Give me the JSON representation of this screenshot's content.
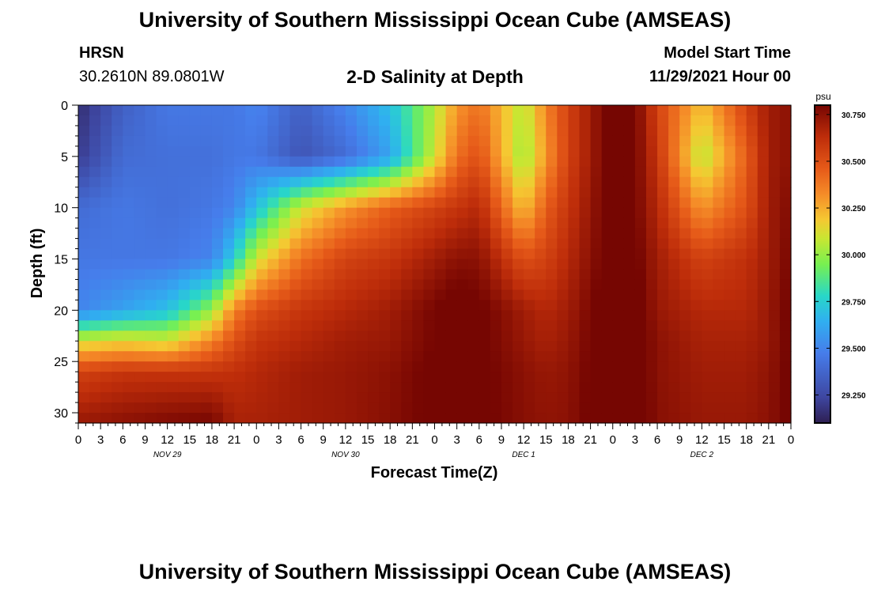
{
  "page": {
    "title": "University of Southern Mississippi Ocean Cube (AMSEAS)",
    "title_repeat": "University of Southern Mississippi Ocean Cube (AMSEAS)",
    "station": "HRSN",
    "coords": "30.2610N  89.0801W",
    "subtitle": "2-D Salinity at Depth",
    "model_start_label": "Model Start Time",
    "model_start_value": "11/29/2021 Hour 00"
  },
  "chart_data": {
    "type": "heatmap",
    "title": "2-D Salinity at Depth",
    "xlabel": "Forecast Time(Z)",
    "ylabel": "Depth (ft)",
    "x_tick_labels": [
      "0",
      "3",
      "6",
      "9",
      "12",
      "15",
      "18",
      "21",
      "0",
      "3",
      "6",
      "9",
      "12",
      "15",
      "18",
      "21",
      "0",
      "3",
      "6",
      "9",
      "12",
      "15",
      "18",
      "21",
      "0",
      "3",
      "6",
      "9",
      "12",
      "15",
      "18",
      "21",
      "0"
    ],
    "x_range_hours": [
      0,
      96
    ],
    "day_labels": [
      {
        "label": "NOV 29",
        "hour": 12
      },
      {
        "label": "NOV 30",
        "hour": 36
      },
      {
        "label": "DEC 1",
        "hour": 60
      },
      {
        "label": "DEC 2",
        "hour": 84
      }
    ],
    "y_ticks": [
      0,
      5,
      10,
      15,
      20,
      25,
      30
    ],
    "y_tick_labels": [
      "0",
      "5",
      "10",
      "15",
      "20",
      "25",
      "30"
    ],
    "ylim": [
      0,
      31
    ],
    "colorbar": {
      "unit": "psu",
      "range": [
        29.1,
        30.8
      ],
      "tick_values": [
        29.25,
        29.5,
        29.75,
        30.0,
        30.25,
        30.5,
        30.75
      ],
      "tick_labels": [
        "29.250",
        "29.500",
        "29.750",
        "30.000",
        "30.250",
        "30.500",
        "30.750"
      ]
    },
    "field": {
      "description": "salinity (psu) vs forecast hour and depth; estimated",
      "hours": [
        0,
        6,
        12,
        18,
        21,
        24,
        30,
        36,
        42,
        48,
        51,
        54,
        60,
        63,
        66,
        72,
        75,
        78,
        84,
        90,
        93,
        96
      ],
      "depths": [
        0,
        5,
        10,
        15,
        20,
        23,
        26,
        31
      ],
      "values": [
        [
          29.15,
          29.35,
          29.45,
          29.45,
          29.45,
          29.5,
          29.35,
          29.5,
          29.7,
          30.05,
          30.3,
          30.4,
          30.05,
          30.35,
          30.55,
          30.85,
          30.8,
          30.55,
          30.2,
          30.55,
          30.7,
          30.75
        ],
        [
          29.2,
          29.4,
          29.42,
          29.42,
          29.45,
          29.45,
          29.3,
          29.4,
          29.6,
          30.1,
          30.4,
          30.5,
          30.0,
          30.3,
          30.55,
          30.85,
          30.8,
          30.6,
          30.05,
          30.45,
          30.7,
          30.75
        ],
        [
          29.4,
          29.45,
          29.42,
          29.45,
          29.5,
          29.7,
          30.1,
          30.3,
          30.45,
          30.55,
          30.6,
          30.65,
          30.2,
          30.45,
          30.6,
          30.85,
          30.8,
          30.65,
          30.3,
          30.5,
          30.7,
          30.78
        ],
        [
          29.45,
          29.45,
          29.45,
          29.5,
          29.75,
          30.1,
          30.4,
          30.55,
          30.6,
          30.7,
          30.75,
          30.75,
          30.5,
          30.55,
          30.65,
          30.85,
          30.82,
          30.7,
          30.55,
          30.62,
          30.7,
          30.8
        ],
        [
          29.5,
          29.6,
          29.7,
          30.0,
          30.35,
          30.5,
          30.6,
          30.65,
          30.7,
          30.8,
          30.85,
          30.82,
          30.7,
          30.65,
          30.7,
          30.88,
          30.85,
          30.72,
          30.65,
          30.65,
          30.72,
          30.82
        ],
        [
          30.1,
          30.15,
          30.1,
          30.35,
          30.5,
          30.6,
          30.65,
          30.7,
          30.72,
          30.8,
          30.85,
          30.82,
          30.72,
          30.68,
          30.72,
          30.88,
          30.85,
          30.75,
          30.68,
          30.68,
          30.72,
          30.82
        ],
        [
          30.55,
          30.6,
          30.6,
          30.6,
          30.62,
          30.65,
          30.7,
          30.72,
          30.75,
          30.82,
          30.85,
          30.82,
          30.75,
          30.72,
          30.74,
          30.88,
          30.85,
          30.75,
          30.7,
          30.7,
          30.74,
          30.82
        ],
        [
          30.72,
          30.75,
          30.78,
          30.8,
          30.68,
          30.68,
          30.7,
          30.72,
          30.76,
          30.82,
          30.85,
          30.82,
          30.76,
          30.74,
          30.75,
          30.88,
          30.86,
          30.76,
          30.72,
          30.72,
          30.75,
          30.82
        ]
      ]
    }
  }
}
